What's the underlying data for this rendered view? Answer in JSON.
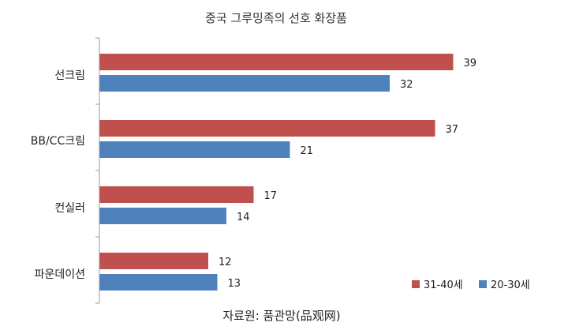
{
  "chart_data": {
    "type": "bar",
    "orientation": "horizontal",
    "title": "중국 그루밍족의 선호 화장품",
    "categories": [
      "선크림",
      "BB/CC크림",
      "컨실러",
      "파운데이션"
    ],
    "series": [
      {
        "name": "31-40세",
        "color": "#c0504d",
        "values": [
          39,
          37,
          17,
          12
        ]
      },
      {
        "name": "20-30세",
        "color": "#4f81bd",
        "values": [
          32,
          21,
          14,
          13
        ]
      }
    ],
    "xlim": [
      0,
      40
    ],
    "grid": false,
    "legend_position": "bottom-right",
    "source": "자료원: 품관망(品观网)"
  }
}
